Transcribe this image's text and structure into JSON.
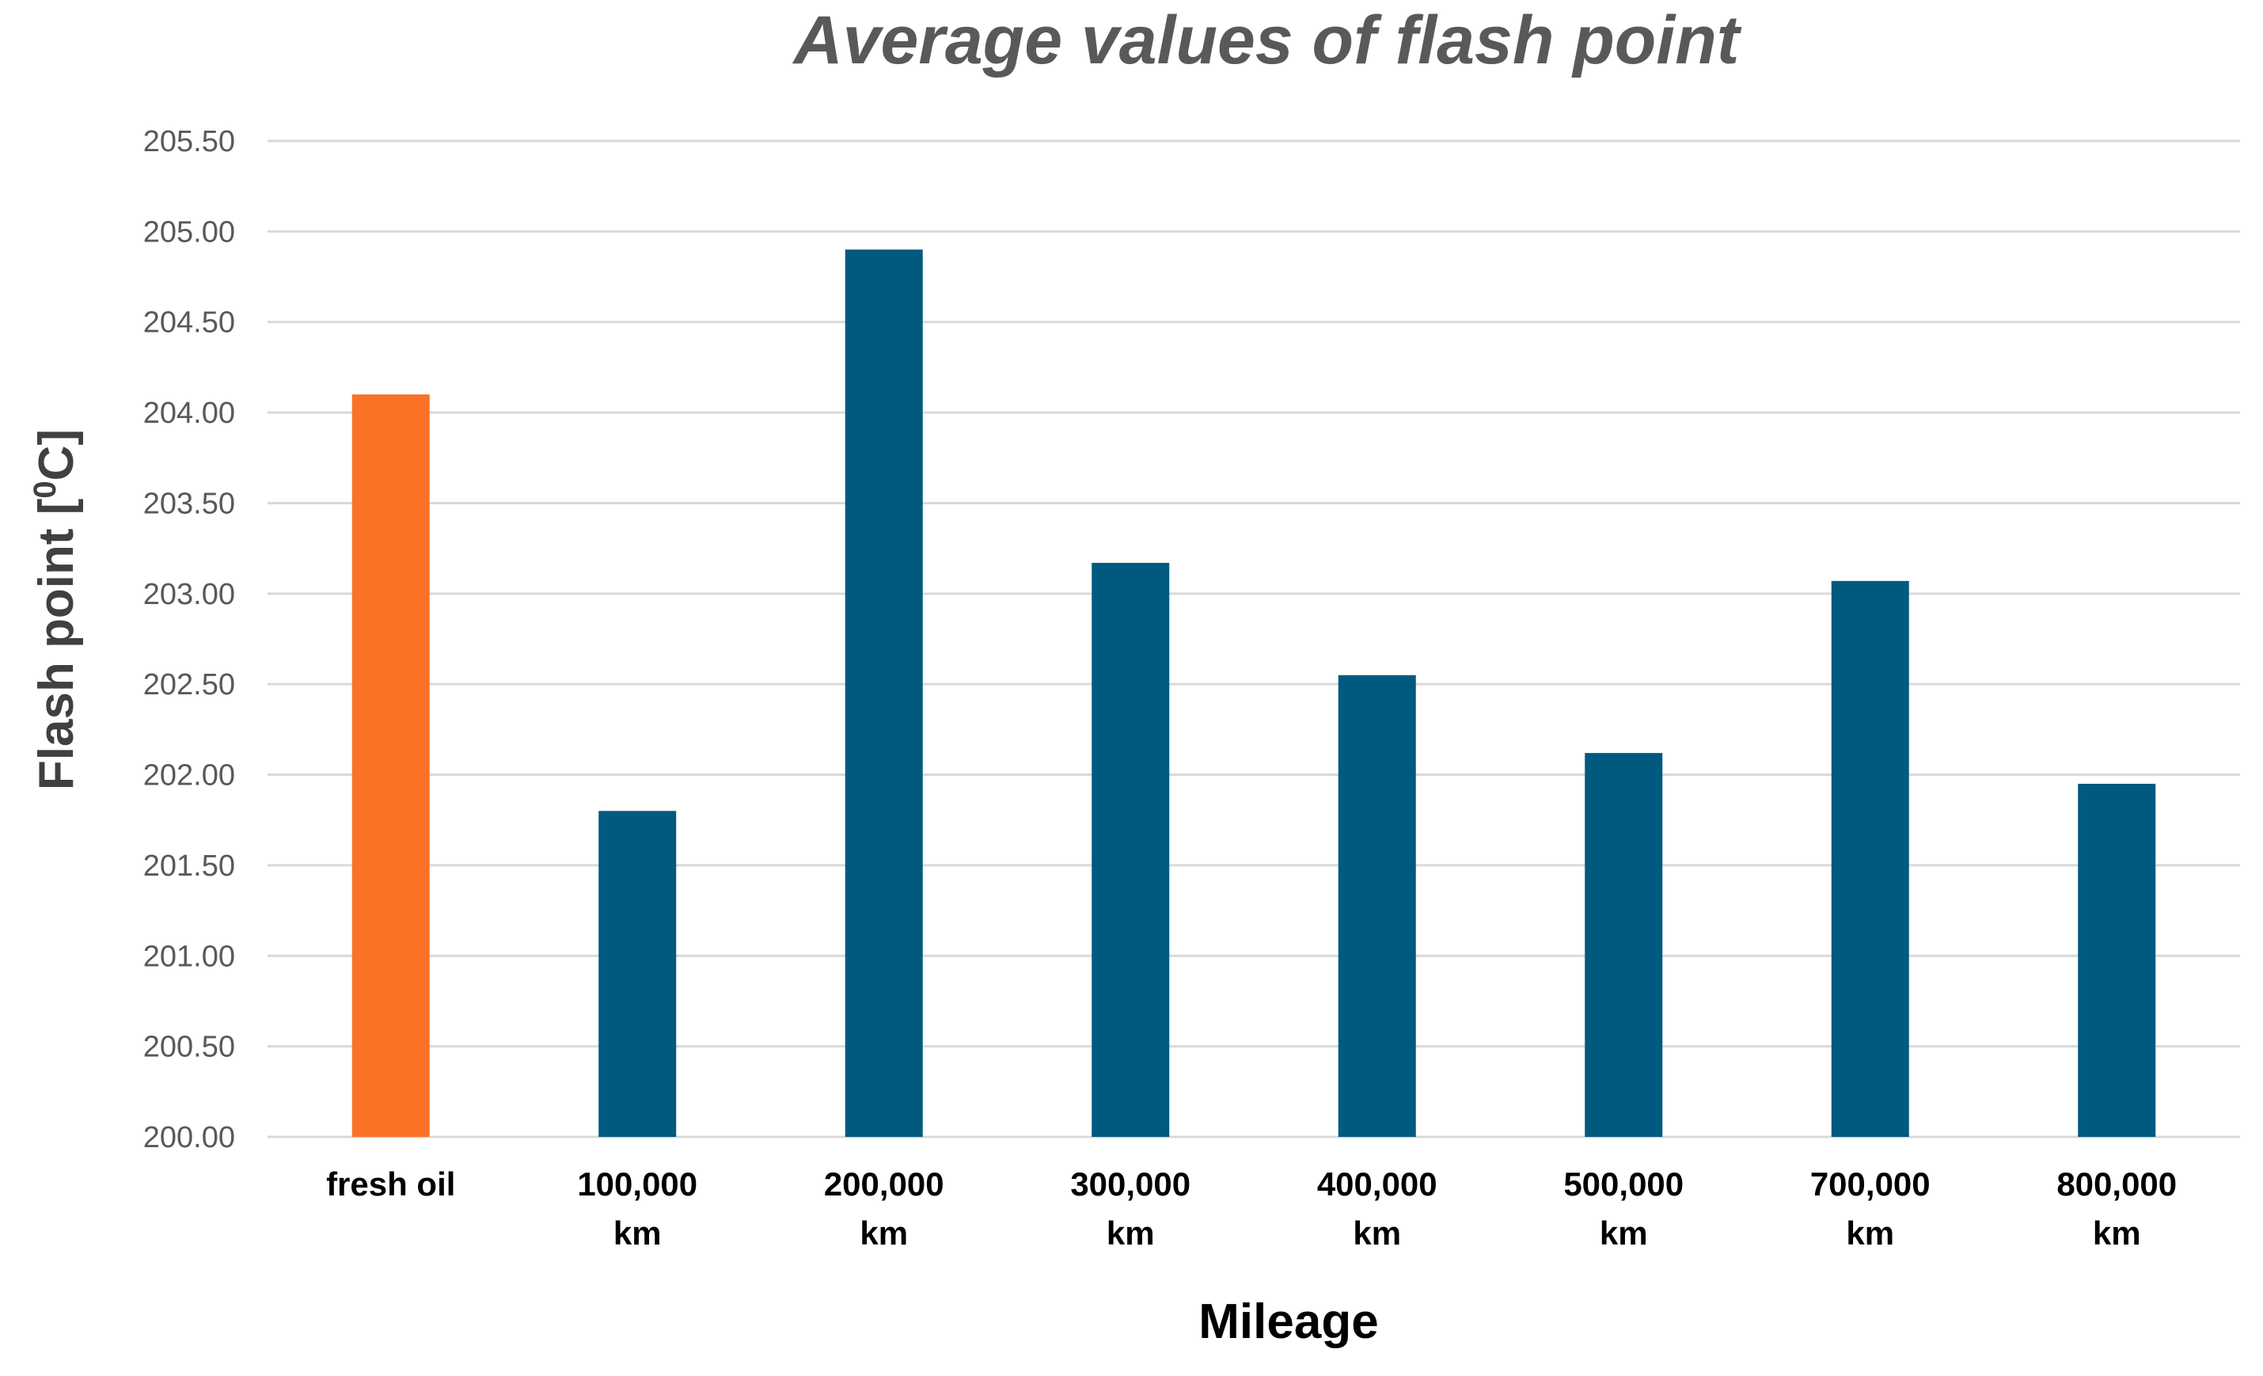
{
  "chart_data": {
    "type": "bar",
    "title": "Average values of flash point",
    "xlabel": "Mileage",
    "ylabel": {
      "prefix": "Flash point  [",
      "superscript": "0",
      "suffix": "C]"
    },
    "categories": [
      [
        "fresh oil"
      ],
      [
        "100,000",
        "km"
      ],
      [
        "200,000",
        "km"
      ],
      [
        "300,000",
        "km"
      ],
      [
        "400,000",
        "km"
      ],
      [
        "500,000",
        "km"
      ],
      [
        "700,000",
        "km"
      ],
      [
        "800,000",
        "km"
      ]
    ],
    "values": [
      204.1,
      201.8,
      204.9,
      203.17,
      202.55,
      202.12,
      203.07,
      201.95
    ],
    "bar_colors": [
      "#fa7226",
      "#005a80",
      "#005a80",
      "#005a80",
      "#005a80",
      "#005a80",
      "#005a80",
      "#005a80"
    ],
    "ylim": [
      200.0,
      205.5
    ],
    "yticks": [
      "200.00",
      "200.50",
      "201.00",
      "201.50",
      "202.00",
      "202.50",
      "203.00",
      "203.50",
      "204.00",
      "204.50",
      "205.00",
      "205.50"
    ],
    "grid": true,
    "legend": "none"
  }
}
